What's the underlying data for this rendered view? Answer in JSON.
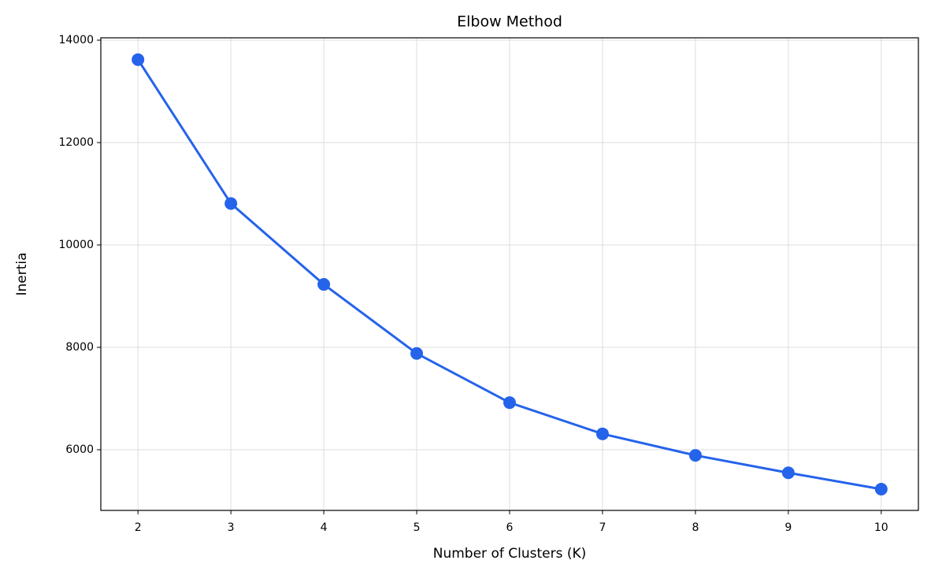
{
  "chart_data": {
    "type": "line",
    "title": "Elbow Method",
    "xlabel": "Number of Clusters (K)",
    "ylabel": "Inertia",
    "x": [
      2,
      3,
      4,
      5,
      6,
      7,
      8,
      9,
      10
    ],
    "values": [
      13620,
      10810,
      9230,
      7880,
      6920,
      6310,
      5890,
      5550,
      5230
    ],
    "color": "#2563eb",
    "xlim": [
      1.6,
      10.4
    ],
    "xticks": [
      2,
      3,
      4,
      5,
      6,
      7,
      8,
      9,
      10
    ],
    "ylim": [
      4815,
      14046
    ],
    "yticks": [
      6000,
      8000,
      10000,
      12000,
      14000
    ],
    "grid": true
  }
}
